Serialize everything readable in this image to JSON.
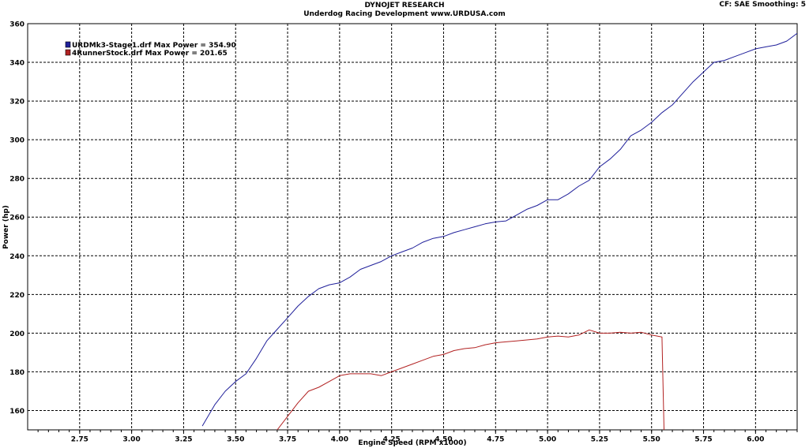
{
  "header": {
    "title": "DYNOJET RESEARCH",
    "subtitle": "Underdog Racing Development www.URDUSA.com",
    "settings": "CF: SAE  Smoothing: 5"
  },
  "chart_data": {
    "type": "line",
    "xlabel": "Engine Speed (RPM x1000)",
    "ylabel": "Power (hp)",
    "xlim": [
      2.5,
      6.2
    ],
    "ylim": [
      150,
      360
    ],
    "x_ticks": [
      "2.75",
      "3.00",
      "3.25",
      "3.50",
      "3.75",
      "4.00",
      "4.25",
      "4.50",
      "4.75",
      "5.00",
      "5.25",
      "5.50",
      "5.75",
      "6.00"
    ],
    "y_ticks": [
      "160",
      "180",
      "200",
      "220",
      "240",
      "260",
      "280",
      "300",
      "320",
      "340",
      "360"
    ],
    "grid": true,
    "legend_position": "top-left",
    "series": [
      {
        "name": "URDMk3-Stage1.drf Max Power = 354.90",
        "color": "#1f1f9a",
        "points": [
          [
            3.34,
            152
          ],
          [
            3.4,
            163
          ],
          [
            3.45,
            170
          ],
          [
            3.5,
            175
          ],
          [
            3.55,
            179
          ],
          [
            3.6,
            187
          ],
          [
            3.65,
            196
          ],
          [
            3.7,
            202
          ],
          [
            3.75,
            208
          ],
          [
            3.8,
            214
          ],
          [
            3.85,
            219
          ],
          [
            3.9,
            223
          ],
          [
            3.95,
            225
          ],
          [
            4.0,
            226
          ],
          [
            4.05,
            229
          ],
          [
            4.1,
            233
          ],
          [
            4.15,
            235
          ],
          [
            4.2,
            237
          ],
          [
            4.25,
            240
          ],
          [
            4.3,
            242
          ],
          [
            4.35,
            244
          ],
          [
            4.4,
            247
          ],
          [
            4.45,
            249
          ],
          [
            4.5,
            250
          ],
          [
            4.55,
            252
          ],
          [
            4.6,
            253.5
          ],
          [
            4.65,
            255
          ],
          [
            4.7,
            256.5
          ],
          [
            4.75,
            257.5
          ],
          [
            4.8,
            258
          ],
          [
            4.85,
            261
          ],
          [
            4.9,
            264
          ],
          [
            4.95,
            266
          ],
          [
            5.0,
            269
          ],
          [
            5.05,
            269
          ],
          [
            5.1,
            272
          ],
          [
            5.15,
            276
          ],
          [
            5.2,
            279
          ],
          [
            5.25,
            286
          ],
          [
            5.3,
            290
          ],
          [
            5.35,
            295
          ],
          [
            5.4,
            302
          ],
          [
            5.45,
            305
          ],
          [
            5.5,
            309
          ],
          [
            5.55,
            314
          ],
          [
            5.6,
            318
          ],
          [
            5.65,
            324
          ],
          [
            5.7,
            330
          ],
          [
            5.75,
            335
          ],
          [
            5.8,
            340
          ],
          [
            5.85,
            341
          ],
          [
            5.9,
            343
          ],
          [
            5.95,
            345
          ],
          [
            6.0,
            347
          ],
          [
            6.05,
            348
          ],
          [
            6.1,
            349
          ],
          [
            6.15,
            351
          ],
          [
            6.2,
            355
          ]
        ]
      },
      {
        "name": "4RunnerStock.drf Max Power = 201.65",
        "color": "#b22222",
        "points": [
          [
            3.7,
            150
          ],
          [
            3.75,
            157
          ],
          [
            3.8,
            164
          ],
          [
            3.85,
            170
          ],
          [
            3.9,
            172
          ],
          [
            3.95,
            175
          ],
          [
            4.0,
            178
          ],
          [
            4.05,
            179
          ],
          [
            4.1,
            179
          ],
          [
            4.15,
            179
          ],
          [
            4.2,
            178
          ],
          [
            4.25,
            180
          ],
          [
            4.3,
            182
          ],
          [
            4.35,
            184
          ],
          [
            4.4,
            186
          ],
          [
            4.45,
            188
          ],
          [
            4.5,
            189
          ],
          [
            4.55,
            191
          ],
          [
            4.6,
            192
          ],
          [
            4.65,
            192.5
          ],
          [
            4.7,
            194
          ],
          [
            4.75,
            195
          ],
          [
            4.8,
            195.5
          ],
          [
            4.85,
            196
          ],
          [
            4.9,
            196.5
          ],
          [
            4.95,
            197
          ],
          [
            5.0,
            198
          ],
          [
            5.05,
            198.5
          ],
          [
            5.1,
            198
          ],
          [
            5.15,
            199
          ],
          [
            5.2,
            201.65
          ],
          [
            5.25,
            200
          ],
          [
            5.3,
            200
          ],
          [
            5.35,
            200.5
          ],
          [
            5.4,
            200
          ],
          [
            5.45,
            200.5
          ],
          [
            5.5,
            199
          ],
          [
            5.55,
            198
          ],
          [
            5.56,
            150
          ]
        ]
      }
    ]
  }
}
